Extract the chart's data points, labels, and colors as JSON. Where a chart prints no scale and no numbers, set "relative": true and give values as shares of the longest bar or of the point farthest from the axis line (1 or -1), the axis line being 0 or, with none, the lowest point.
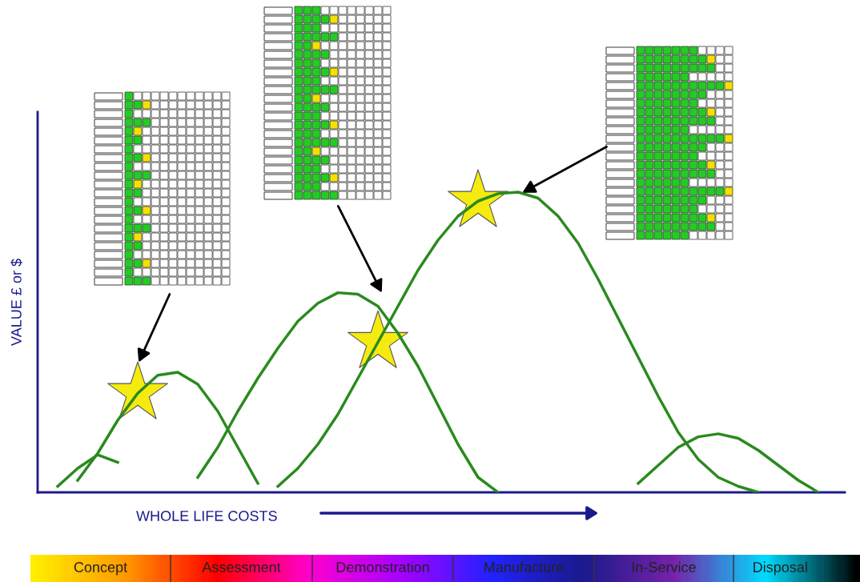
{
  "chart_data": {
    "type": "line",
    "relative": true,
    "xlabel": "WHOLE LIFE COSTS",
    "ylabel": "VALUE £ or $",
    "marker": "none",
    "legend": false,
    "grid": false,
    "categories": [
      null,
      null,
      null,
      null,
      null,
      null,
      null,
      null,
      null,
      null,
      null,
      null,
      null,
      null,
      null,
      null,
      null,
      null,
      null,
      null,
      null,
      null,
      null,
      null,
      null,
      null,
      null,
      null,
      null,
      null,
      null,
      null,
      null,
      null,
      null,
      null,
      null,
      null,
      null,
      null,
      null
    ],
    "series": [
      {
        "color": "#2a8a1e",
        "values": [
          null,
          0.02,
          0.08,
          0.125,
          0.1,
          null,
          null,
          null,
          null,
          null,
          null,
          null,
          null,
          null,
          null,
          null,
          null,
          null,
          null,
          null,
          null,
          null,
          null,
          null,
          null,
          null,
          null,
          null,
          null,
          null,
          null,
          null,
          null,
          null,
          null,
          null,
          null,
          null,
          null,
          null,
          null
        ]
      },
      {
        "color": "#2a8a1e",
        "values": [
          null,
          null,
          0.04,
          0.13,
          0.24,
          0.33,
          0.39,
          0.4,
          0.36,
          0.27,
          0.15,
          0.03,
          null,
          null,
          null,
          null,
          null,
          null,
          null,
          null,
          null,
          null,
          null,
          null,
          null,
          null,
          null,
          null,
          null,
          null,
          null,
          null,
          null,
          null,
          null,
          null,
          null,
          null,
          null,
          null,
          null
        ]
      },
      {
        "color": "#2a8a1e",
        "values": [
          null,
          null,
          null,
          null,
          null,
          null,
          null,
          null,
          0.05,
          0.15,
          0.27,
          0.38,
          0.48,
          0.57,
          0.63,
          0.665,
          0.66,
          0.62,
          0.53,
          0.42,
          0.29,
          0.16,
          0.05,
          0,
          null,
          null,
          null,
          null,
          null,
          null,
          null,
          null,
          null,
          null,
          null,
          null,
          null,
          null,
          null,
          null,
          null
        ]
      },
      {
        "color": "#2a8a1e",
        "values": [
          null,
          null,
          null,
          null,
          null,
          null,
          null,
          null,
          null,
          null,
          null,
          null,
          0.02,
          0.08,
          0.16,
          0.26,
          0.38,
          0.5,
          0.62,
          0.74,
          0.84,
          0.92,
          0.97,
          0.995,
          1.0,
          0.98,
          0.92,
          0.83,
          0.71,
          0.58,
          0.45,
          0.32,
          0.2,
          0.11,
          0.05,
          0.02,
          0,
          null,
          null,
          null,
          null
        ]
      },
      {
        "color": "#2a8a1e",
        "values": [
          null,
          null,
          null,
          null,
          null,
          null,
          null,
          null,
          null,
          null,
          null,
          null,
          null,
          null,
          null,
          null,
          null,
          null,
          null,
          null,
          null,
          null,
          null,
          null,
          null,
          null,
          null,
          null,
          null,
          null,
          0.03,
          0.09,
          0.15,
          0.185,
          0.195,
          0.18,
          0.14,
          0.09,
          0.04,
          0,
          null
        ]
      }
    ],
    "annotations": [
      "Concept",
      "Assessment",
      "Demonstration",
      "Manufacture",
      "In-Service",
      "Disposal"
    ]
  }
}
